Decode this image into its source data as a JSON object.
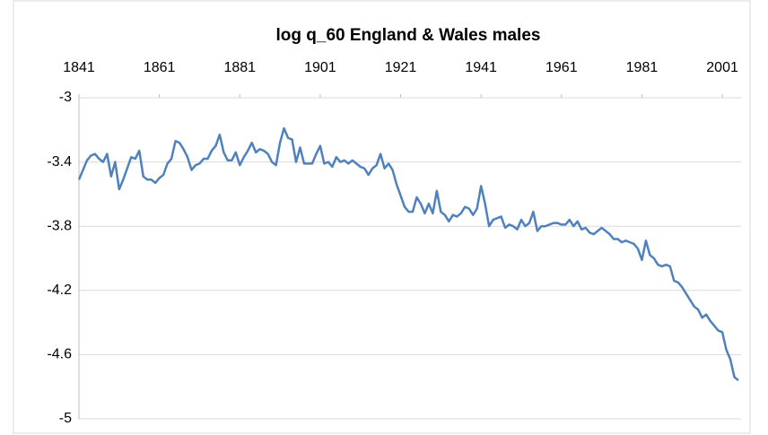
{
  "chart_data": {
    "type": "line",
    "title": "log q_60 England & Wales males",
    "x": [
      1841,
      1842,
      1843,
      1844,
      1845,
      1846,
      1847,
      1848,
      1849,
      1850,
      1851,
      1852,
      1853,
      1854,
      1855,
      1856,
      1857,
      1858,
      1859,
      1860,
      1861,
      1862,
      1863,
      1864,
      1865,
      1866,
      1867,
      1868,
      1869,
      1870,
      1871,
      1872,
      1873,
      1874,
      1875,
      1876,
      1877,
      1878,
      1879,
      1880,
      1881,
      1882,
      1883,
      1884,
      1885,
      1886,
      1887,
      1888,
      1889,
      1890,
      1891,
      1892,
      1893,
      1894,
      1895,
      1896,
      1897,
      1898,
      1899,
      1900,
      1901,
      1902,
      1903,
      1904,
      1905,
      1906,
      1907,
      1908,
      1909,
      1910,
      1911,
      1912,
      1913,
      1914,
      1915,
      1916,
      1917,
      1918,
      1919,
      1920,
      1921,
      1922,
      1923,
      1924,
      1925,
      1926,
      1927,
      1928,
      1929,
      1930,
      1931,
      1932,
      1933,
      1934,
      1935,
      1936,
      1937,
      1938,
      1939,
      1940,
      1941,
      1942,
      1943,
      1944,
      1945,
      1946,
      1947,
      1948,
      1949,
      1950,
      1951,
      1952,
      1953,
      1954,
      1955,
      1956,
      1957,
      1958,
      1959,
      1960,
      1961,
      1962,
      1963,
      1964,
      1965,
      1966,
      1967,
      1968,
      1969,
      1970,
      1971,
      1972,
      1973,
      1974,
      1975,
      1976,
      1977,
      1978,
      1979,
      1980,
      1981,
      1982,
      1983,
      1984,
      1985,
      1986,
      1987,
      1988,
      1989,
      1990,
      1991,
      1992,
      1993,
      1994,
      1995,
      1996,
      1997,
      1998,
      1999,
      2000,
      2001,
      2002,
      2003,
      2004,
      2005
    ],
    "values": [
      -3.51,
      -3.45,
      -3.39,
      -3.36,
      -3.35,
      -3.38,
      -3.4,
      -3.35,
      -3.49,
      -3.4,
      -3.57,
      -3.51,
      -3.44,
      -3.37,
      -3.38,
      -3.33,
      -3.49,
      -3.51,
      -3.51,
      -3.53,
      -3.5,
      -3.48,
      -3.41,
      -3.38,
      -3.27,
      -3.28,
      -3.32,
      -3.37,
      -3.45,
      -3.42,
      -3.41,
      -3.38,
      -3.38,
      -3.33,
      -3.3,
      -3.23,
      -3.34,
      -3.39,
      -3.39,
      -3.34,
      -3.42,
      -3.37,
      -3.33,
      -3.28,
      -3.34,
      -3.32,
      -3.33,
      -3.35,
      -3.4,
      -3.42,
      -3.28,
      -3.19,
      -3.25,
      -3.26,
      -3.4,
      -3.31,
      -3.41,
      -3.41,
      -3.41,
      -3.35,
      -3.3,
      -3.41,
      -3.4,
      -3.43,
      -3.37,
      -3.4,
      -3.39,
      -3.41,
      -3.39,
      -3.41,
      -3.43,
      -3.44,
      -3.48,
      -3.44,
      -3.42,
      -3.35,
      -3.44,
      -3.41,
      -3.45,
      -3.54,
      -3.61,
      -3.68,
      -3.71,
      -3.71,
      -3.62,
      -3.66,
      -3.72,
      -3.66,
      -3.72,
      -3.58,
      -3.71,
      -3.73,
      -3.77,
      -3.73,
      -3.74,
      -3.72,
      -3.68,
      -3.69,
      -3.73,
      -3.69,
      -3.55,
      -3.66,
      -3.8,
      -3.76,
      -3.75,
      -3.74,
      -3.81,
      -3.79,
      -3.8,
      -3.82,
      -3.76,
      -3.8,
      -3.78,
      -3.71,
      -3.83,
      -3.8,
      -3.8,
      -3.79,
      -3.78,
      -3.78,
      -3.79,
      -3.79,
      -3.76,
      -3.8,
      -3.77,
      -3.82,
      -3.81,
      -3.84,
      -3.85,
      -3.83,
      -3.81,
      -3.83,
      -3.85,
      -3.88,
      -3.88,
      -3.9,
      -3.89,
      -3.9,
      -3.91,
      -3.94,
      -4.01,
      -3.89,
      -3.98,
      -4.0,
      -4.04,
      -4.05,
      -4.04,
      -4.05,
      -4.14,
      -4.15,
      -4.18,
      -4.22,
      -4.26,
      -4.3,
      -4.32,
      -4.37,
      -4.35,
      -4.39,
      -4.42,
      -4.45,
      -4.46,
      -4.57,
      -4.63,
      -4.74,
      -4.76
    ],
    "color": "#4f81bd",
    "xlim": [
      1841,
      2005
    ],
    "xticks": [
      1841,
      1861,
      1881,
      1901,
      1921,
      1941,
      1961,
      1981,
      2001
    ],
    "ylim": [
      -5,
      -3
    ],
    "yticks": [
      -3,
      -3.4,
      -3.8,
      -4.2,
      -4.6,
      -5
    ],
    "grid": true
  }
}
